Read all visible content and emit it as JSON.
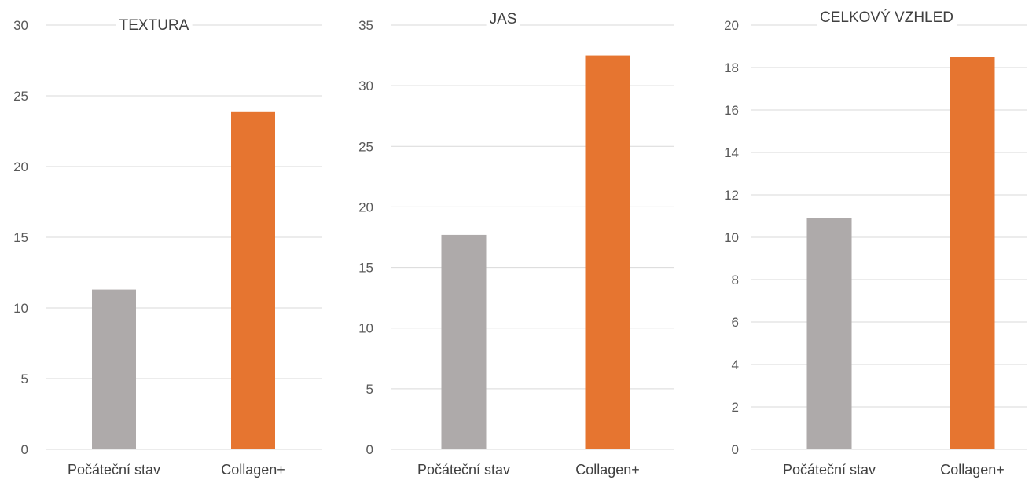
{
  "chart_data": [
    {
      "type": "bar",
      "title": "TEXTURA",
      "categories": [
        "Počáteční stav",
        "Collagen+"
      ],
      "values": [
        11.3,
        23.9
      ],
      "ylim": [
        0,
        30
      ],
      "yticks": [
        "0",
        "5",
        "10",
        "15",
        "20",
        "25",
        "30"
      ],
      "colors": [
        "#aeaaaa",
        "#e67530"
      ],
      "grid": true
    },
    {
      "type": "bar",
      "title": "JAS",
      "categories": [
        "Počáteční stav",
        "Collagen+"
      ],
      "values": [
        17.7,
        32.5
      ],
      "ylim": [
        0,
        35
      ],
      "yticks": [
        "0",
        "5",
        "10",
        "15",
        "20",
        "25",
        "30",
        "35"
      ],
      "colors": [
        "#aeaaaa",
        "#e67530"
      ],
      "grid": true
    },
    {
      "type": "bar",
      "title": "CELKOVÝ VZHLED",
      "categories": [
        "Počáteční stav",
        "Collagen+"
      ],
      "values": [
        10.9,
        18.5
      ],
      "ylim": [
        0,
        20
      ],
      "yticks": [
        "0",
        "2",
        "4",
        "6",
        "8",
        "10",
        "12",
        "14",
        "16",
        "18",
        "20"
      ],
      "colors": [
        "#aeaaaa",
        "#e67530"
      ],
      "grid": true
    }
  ]
}
